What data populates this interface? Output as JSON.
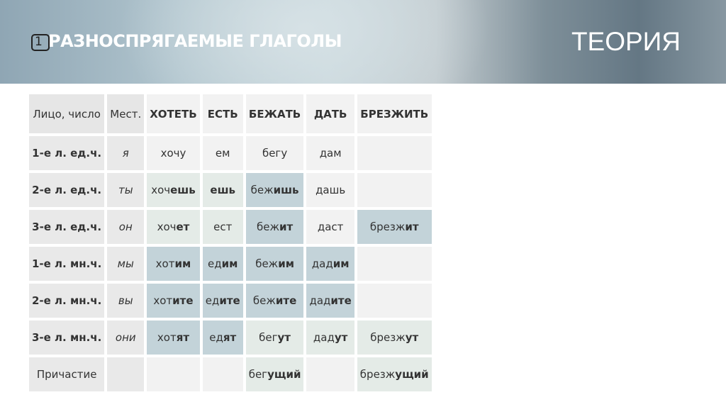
{
  "header": {
    "number": "1",
    "title": "РАЗНОСПРЯГАЕМЫЕ ГЛАГОЛЫ",
    "section": "ТЕОРИЯ"
  },
  "table": {
    "columns": [
      "Лицо, число",
      "Мест.",
      "ХОТЕТЬ",
      "ЕСТЬ",
      "БЕЖАТЬ",
      "ДАТЬ",
      "БРЕЗЖИТЬ"
    ],
    "rows": [
      {
        "label": "1-е л. ед.ч.",
        "pronoun": "я",
        "cells": [
          {
            "stem": "хочу",
            "ending": "",
            "tone": "plain"
          },
          {
            "stem": "ем",
            "ending": "",
            "tone": "plain"
          },
          {
            "stem": "бегу",
            "ending": "",
            "tone": "plain"
          },
          {
            "stem": "дам",
            "ending": "",
            "tone": "plain"
          },
          {
            "stem": "",
            "ending": "",
            "tone": "plain"
          }
        ]
      },
      {
        "label": "2-е л. ед.ч.",
        "pronoun": "ты",
        "cells": [
          {
            "stem": "хоч",
            "ending": "ешь",
            "tone": "green"
          },
          {
            "stem": "",
            "ending": "ешь",
            "tone": "green"
          },
          {
            "stem": "беж",
            "ending": "ишь",
            "tone": "blue"
          },
          {
            "stem": "дашь",
            "ending": "",
            "tone": "plain"
          },
          {
            "stem": "",
            "ending": "",
            "tone": "plain"
          }
        ]
      },
      {
        "label": "3-е л. ед.ч.",
        "pronoun": "он",
        "cells": [
          {
            "stem": "хоч",
            "ending": "ет",
            "tone": "green"
          },
          {
            "stem": "ест",
            "ending": "",
            "tone": "green"
          },
          {
            "stem": "беж",
            "ending": "ит",
            "tone": "blue"
          },
          {
            "stem": "даст",
            "ending": "",
            "tone": "plain"
          },
          {
            "stem": "брезж",
            "ending": "ит",
            "tone": "blue"
          }
        ]
      },
      {
        "label": "1-е л. мн.ч.",
        "pronoun": "мы",
        "cells": [
          {
            "stem": "хот",
            "ending": "им",
            "tone": "blue"
          },
          {
            "stem": "ед",
            "ending": "им",
            "tone": "blue"
          },
          {
            "stem": "беж",
            "ending": "им",
            "tone": "blue"
          },
          {
            "stem": "дад",
            "ending": "им",
            "tone": "blue"
          },
          {
            "stem": "",
            "ending": "",
            "tone": "plain"
          }
        ]
      },
      {
        "label": "2-е л. мн.ч.",
        "pronoun": "вы",
        "cells": [
          {
            "stem": "хот",
            "ending": "ите",
            "tone": "blue"
          },
          {
            "stem": "ед",
            "ending": "ите",
            "tone": "blue"
          },
          {
            "stem": "беж",
            "ending": "ите",
            "tone": "blue"
          },
          {
            "stem": "дад",
            "ending": "ите",
            "tone": "blue"
          },
          {
            "stem": "",
            "ending": "",
            "tone": "plain"
          }
        ]
      },
      {
        "label": "3-е л. мн.ч.",
        "pronoun": "они",
        "cells": [
          {
            "stem": "хот",
            "ending": "ят",
            "tone": "blue"
          },
          {
            "stem": "ед",
            "ending": "ят",
            "tone": "blue"
          },
          {
            "stem": "бег",
            "ending": "ут",
            "tone": "green"
          },
          {
            "stem": "дад",
            "ending": "ут",
            "tone": "green"
          },
          {
            "stem": "брезж",
            "ending": "ут",
            "tone": "green"
          }
        ]
      },
      {
        "label": "Причастие",
        "pronoun": "",
        "labelBold": false,
        "cells": [
          {
            "stem": "",
            "ending": "",
            "tone": "plain"
          },
          {
            "stem": "",
            "ending": "",
            "tone": "plain"
          },
          {
            "stem": "бег",
            "ending": "ущий",
            "tone": "green"
          },
          {
            "stem": "",
            "ending": "",
            "tone": "plain"
          },
          {
            "stem": "брезж",
            "ending": "ущий",
            "tone": "green"
          }
        ]
      }
    ]
  },
  "colors": {
    "plain": "#f2f2f2",
    "green": "#e4ebe7",
    "blue": "#c3d3d9"
  }
}
